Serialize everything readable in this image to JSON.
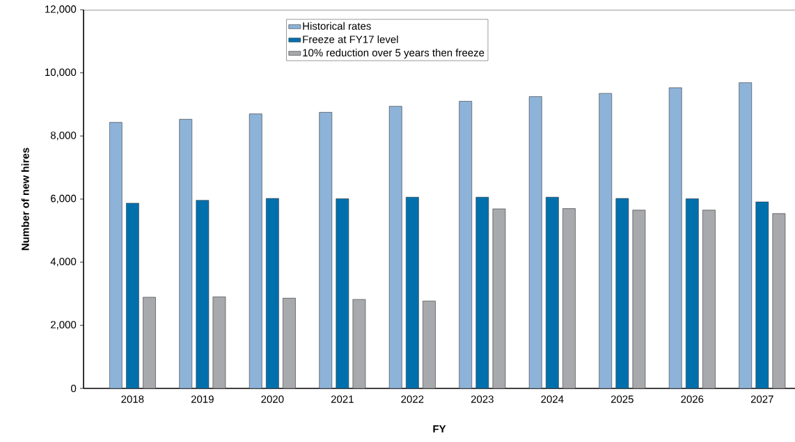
{
  "chart_data": {
    "type": "bar",
    "xlabel": "FY",
    "ylabel": "Number of new hires",
    "categories": [
      "2018",
      "2019",
      "2020",
      "2021",
      "2022",
      "2023",
      "2024",
      "2025",
      "2026",
      "2027"
    ],
    "series": [
      {
        "name": "Historical rates",
        "color": "#8db3d9",
        "values": [
          8430,
          8530,
          8700,
          8750,
          8940,
          9100,
          9250,
          9350,
          9530,
          9690
        ]
      },
      {
        "name": "Freeze at FY17 level",
        "color": "#0070ad",
        "values": [
          5870,
          5960,
          6020,
          6010,
          6060,
          6060,
          6060,
          6020,
          6010,
          5910
        ]
      },
      {
        "name": "10% reduction over 5 years then freeze",
        "color": "#a7a9ac",
        "values": [
          2890,
          2900,
          2860,
          2820,
          2770,
          5690,
          5700,
          5650,
          5650,
          5540
        ]
      }
    ],
    "ylim": [
      0,
      12000
    ],
    "yticks": [
      0,
      {
        "value": 2000,
        "label": "2,000"
      },
      {
        "value": 4000,
        "label": "4,000"
      },
      {
        "value": 6000,
        "label": "6,000"
      },
      {
        "value": 8000,
        "label": "8,000"
      },
      {
        "value": 10000,
        "label": "10,000"
      },
      {
        "value": 12000,
        "label": "12,000"
      }
    ],
    "grid": false,
    "legend": "top"
  }
}
